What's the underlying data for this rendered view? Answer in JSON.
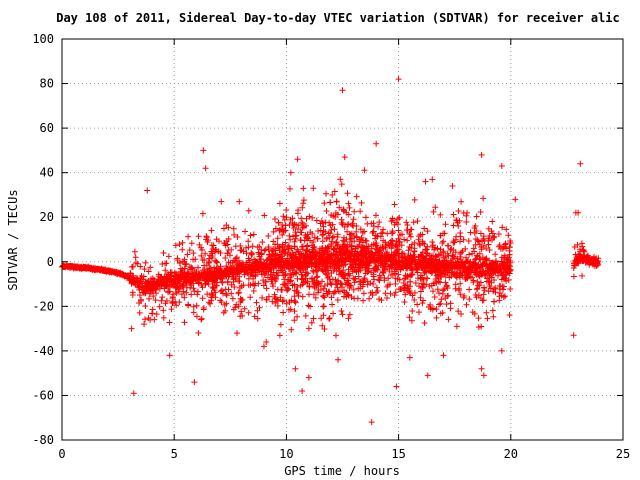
{
  "chart_data": {
    "type": "scatter",
    "title": "Day 108 of 2011, Sidereal Day-to-day VTEC variation (SDTVAR) for receiver alic",
    "xlabel": "GPS time / hours",
    "ylabel": "SDTVAR / TECUs",
    "xlim": [
      0,
      25
    ],
    "ylim": [
      -80,
      100
    ],
    "xticks": [
      "0",
      "5",
      "10",
      "15",
      "20",
      "25"
    ],
    "yticks": [
      "100",
      "80",
      "60",
      "40",
      "20",
      "0",
      "-20",
      "-40",
      "-60",
      "-80"
    ],
    "grid": true,
    "marker": "+",
    "color": "#ff0000",
    "trend": {
      "x": [
        0.0,
        0.5,
        1.0,
        1.5,
        2.0,
        2.5,
        3.0,
        3.3,
        3.6,
        3.8,
        4.0,
        4.5,
        5.0,
        5.5,
        6.0,
        6.5,
        7.0,
        8.0,
        9.0,
        10.0,
        11.0,
        12.0,
        13.0,
        14.0,
        15.0,
        16.0,
        17.0,
        18.0,
        19.0,
        20.0
      ],
      "y": [
        -2,
        -2.3,
        -2.7,
        -3.2,
        -4,
        -5,
        -7,
        -9,
        -11,
        -12,
        -11,
        -9.5,
        -8.5,
        -7.5,
        -6.5,
        -5.5,
        -5,
        -3.5,
        -2,
        -0.5,
        0.5,
        1.5,
        1.5,
        1,
        0,
        -1,
        -2,
        -3,
        -3,
        -2
      ]
    },
    "tail": {
      "x": [
        22.9,
        23.1,
        23.3,
        23.5,
        23.7,
        23.9
      ],
      "y": [
        0,
        2,
        1,
        1,
        0,
        0
      ]
    },
    "outliers": [
      {
        "x": 12.5,
        "y": 77
      },
      {
        "x": 15.0,
        "y": 82
      },
      {
        "x": 14.0,
        "y": 53
      },
      {
        "x": 6.3,
        "y": 50
      },
      {
        "x": 6.4,
        "y": 42
      },
      {
        "x": 12.6,
        "y": 47
      },
      {
        "x": 10.5,
        "y": 46
      },
      {
        "x": 18.7,
        "y": 48
      },
      {
        "x": 19.6,
        "y": 43
      },
      {
        "x": 23.1,
        "y": 44
      },
      {
        "x": 3.8,
        "y": 32
      },
      {
        "x": 7.1,
        "y": 27
      },
      {
        "x": 7.9,
        "y": 27
      },
      {
        "x": 12.4,
        "y": 37
      },
      {
        "x": 16.5,
        "y": 37
      },
      {
        "x": 16.2,
        "y": 36
      },
      {
        "x": 17.4,
        "y": 34
      },
      {
        "x": 10.2,
        "y": 40
      },
      {
        "x": 11.2,
        "y": 33
      },
      {
        "x": 20.2,
        "y": 28
      },
      {
        "x": 22.9,
        "y": 22
      },
      {
        "x": 23.0,
        "y": 22
      },
      {
        "x": 3.2,
        "y": -59
      },
      {
        "x": 5.9,
        "y": -54
      },
      {
        "x": 4.8,
        "y": -42
      },
      {
        "x": 13.8,
        "y": -72
      },
      {
        "x": 14.9,
        "y": -56
      },
      {
        "x": 11.0,
        "y": -52
      },
      {
        "x": 10.7,
        "y": -58
      },
      {
        "x": 16.3,
        "y": -51
      },
      {
        "x": 18.7,
        "y": -48
      },
      {
        "x": 18.8,
        "y": -51
      },
      {
        "x": 9.0,
        "y": -38
      },
      {
        "x": 9.1,
        "y": -36
      },
      {
        "x": 12.3,
        "y": -44
      },
      {
        "x": 19.6,
        "y": -40
      },
      {
        "x": 22.8,
        "y": -33
      },
      {
        "x": 10.4,
        "y": -48
      },
      {
        "x": 15.5,
        "y": -43
      },
      {
        "x": 17.0,
        "y": -42
      },
      {
        "x": 3.1,
        "y": -30
      },
      {
        "x": 7.8,
        "y": -32
      }
    ],
    "scatter_bands": [
      {
        "x0": 3.1,
        "x1": 4.2,
        "spread": 20,
        "count": 60
      },
      {
        "x0": 4.2,
        "x1": 5.0,
        "spread": 18,
        "count": 40
      },
      {
        "x0": 5.0,
        "x1": 6.0,
        "spread": 22,
        "count": 70
      },
      {
        "x0": 6.0,
        "x1": 8.0,
        "spread": 28,
        "count": 170
      },
      {
        "x0": 8.0,
        "x1": 9.5,
        "spread": 24,
        "count": 110
      },
      {
        "x0": 9.5,
        "x1": 11.5,
        "spread": 32,
        "count": 300
      },
      {
        "x0": 11.5,
        "x1": 13.5,
        "spread": 34,
        "count": 320
      },
      {
        "x0": 13.5,
        "x1": 15.5,
        "spread": 26,
        "count": 220
      },
      {
        "x0": 15.5,
        "x1": 17.5,
        "spread": 28,
        "count": 220
      },
      {
        "x0": 17.5,
        "x1": 20.0,
        "spread": 30,
        "count": 230
      },
      {
        "x0": 22.8,
        "x1": 23.3,
        "spread": 12,
        "count": 25
      }
    ]
  }
}
